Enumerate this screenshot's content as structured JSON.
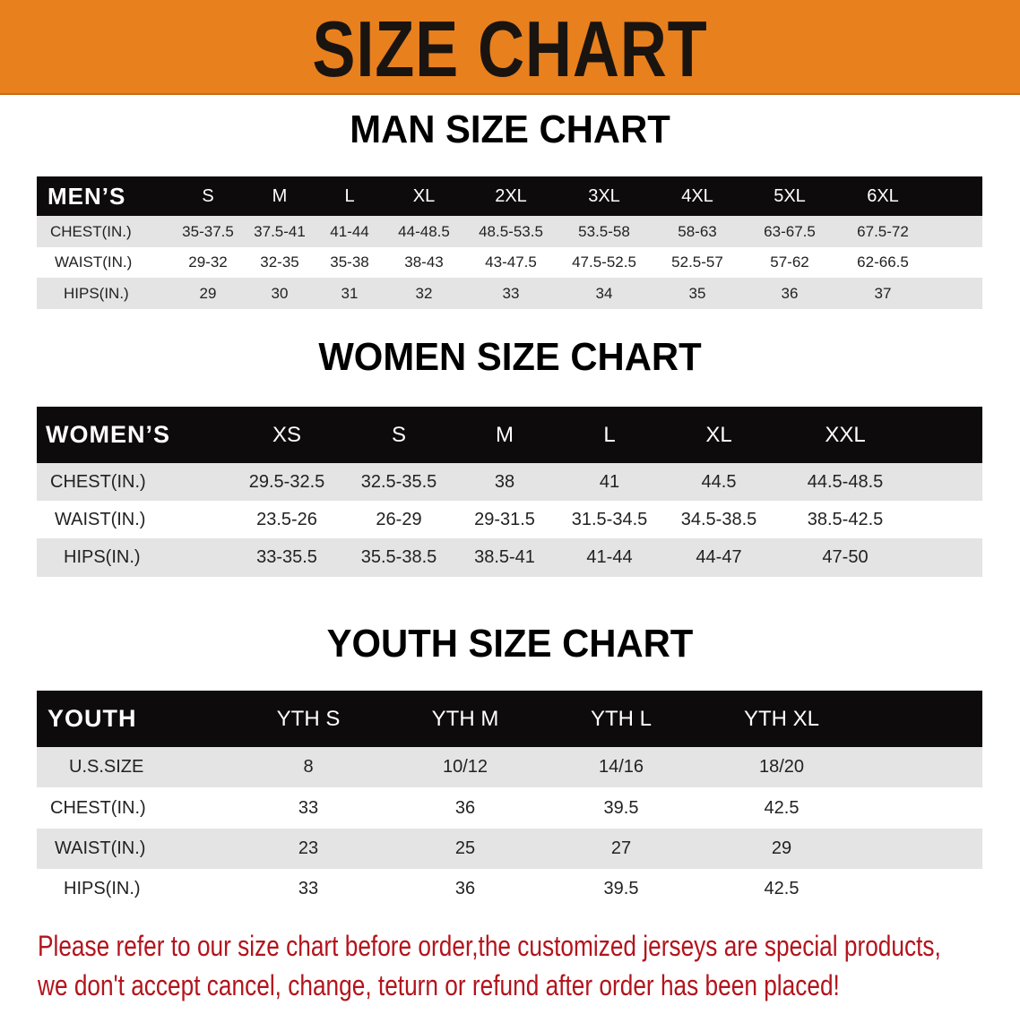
{
  "banner": {
    "title": "SIZE CHART",
    "color": "#e8801e"
  },
  "men": {
    "title": "MAN SIZE CHART",
    "header": "MEN’S",
    "sizes": [
      "S",
      "M",
      "L",
      "XL",
      "2XL",
      "3XL",
      "4XL",
      "5XL",
      "6XL"
    ],
    "rows": [
      {
        "label": "CHEST(IN.)",
        "values": [
          "35-37.5",
          "37.5-41",
          "41-44",
          "44-48.5",
          "48.5-53.5",
          "53.5-58",
          "58-63",
          "63-67.5",
          "67.5-72"
        ]
      },
      {
        "label": "WAIST(IN.)",
        "values": [
          "29-32",
          "32-35",
          "35-38",
          "38-43",
          "43-47.5",
          "47.5-52.5",
          "52.5-57",
          "57-62",
          "62-66.5"
        ]
      },
      {
        "label": "HIPS(IN.)",
        "values": [
          "29",
          "30",
          "31",
          "32",
          "33",
          "34",
          "35",
          "36",
          "37"
        ]
      }
    ]
  },
  "women": {
    "title": "WOMEN SIZE CHART",
    "header": "WOMEN’S",
    "sizes": [
      "XS",
      "S",
      "M",
      "L",
      "XL",
      "XXL"
    ],
    "rows": [
      {
        "label": "CHEST(IN.)",
        "values": [
          "29.5-32.5",
          "32.5-35.5",
          "38",
          "41",
          "44.5",
          "44.5-48.5"
        ]
      },
      {
        "label": "WAIST(IN.)",
        "values": [
          "23.5-26",
          "26-29",
          "29-31.5",
          "31.5-34.5",
          "34.5-38.5",
          "38.5-42.5"
        ]
      },
      {
        "label": "HIPS(IN.)",
        "values": [
          "33-35.5",
          "35.5-38.5",
          "38.5-41",
          "41-44",
          "44-47",
          "47-50"
        ]
      }
    ]
  },
  "youth": {
    "title": "YOUTH SIZE CHART",
    "header": "YOUTH",
    "sizes": [
      "YTH S",
      "YTH M",
      "YTH L",
      "YTH XL"
    ],
    "rows": [
      {
        "label": "U.S.SIZE",
        "values": [
          "8",
          "10/12",
          "14/16",
          "18/20"
        ]
      },
      {
        "label": "CHEST(IN.)",
        "values": [
          "33",
          "36",
          "39.5",
          "42.5"
        ]
      },
      {
        "label": "WAIST(IN.)",
        "values": [
          "23",
          "25",
          "27",
          "29"
        ]
      },
      {
        "label": "HIPS(IN.)",
        "values": [
          "33",
          "36",
          "39.5",
          "42.5"
        ]
      }
    ]
  },
  "note": {
    "line1": "Please refer to our size chart before order,the customized jerseys are special products,",
    "line2": "we don't accept cancel, change, teturn or refund after order has been placed!",
    "color": "#b3141c"
  }
}
